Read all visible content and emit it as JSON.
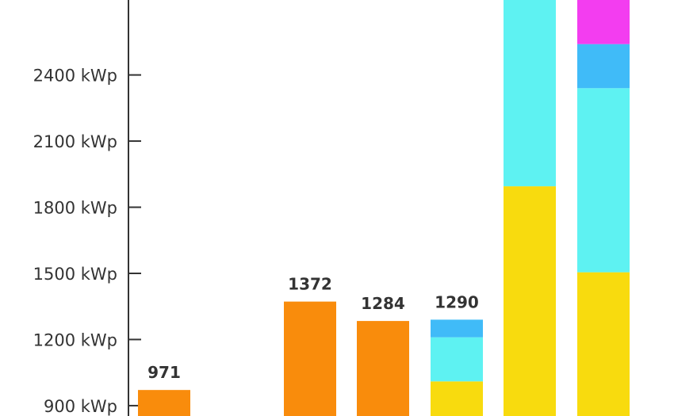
{
  "chart_data": {
    "type": "bar",
    "stacked": true,
    "y_unit": "kWp",
    "yticks": [
      "900 kWp",
      "1200 kWp",
      "1500 kWp",
      "1800 kWp",
      "2100 kWp",
      "2400 kWp"
    ],
    "ytick_values": [
      900,
      1200,
      1500,
      1800,
      2100,
      2400
    ],
    "ylim": [
      853,
      2740
    ],
    "grid": false,
    "bars": [
      {
        "total_label": "971",
        "segments": [
          {
            "value": 971,
            "color": "#F98C0C"
          }
        ]
      },
      {
        "total_label": "1372",
        "segments": [
          {
            "value": 1372,
            "color": "#F98C0C"
          }
        ]
      },
      {
        "total_label": "1284",
        "segments": [
          {
            "value": 1284,
            "color": "#F98C0C"
          }
        ]
      },
      {
        "total_label": "1290",
        "segments": [
          {
            "value": 1010,
            "color": "#F8DB0E"
          },
          {
            "value": 200,
            "color": "#5EF2F2"
          },
          {
            "value": 80,
            "color": "#40BBF8"
          }
        ]
      },
      {
        "total_label": "",
        "segments": [
          {
            "value": 1895,
            "color": "#F8DB0E"
          },
          {
            "value": 845,
            "color": "#5EF2F2"
          }
        ]
      },
      {
        "total_label": "",
        "segments": [
          {
            "value": 1505,
            "color": "#F8DB0E"
          },
          {
            "value": 835,
            "color": "#5EF2F2"
          },
          {
            "value": 200,
            "color": "#40BBF8"
          },
          {
            "value": 200,
            "color": "#F33DF0"
          }
        ]
      }
    ]
  }
}
